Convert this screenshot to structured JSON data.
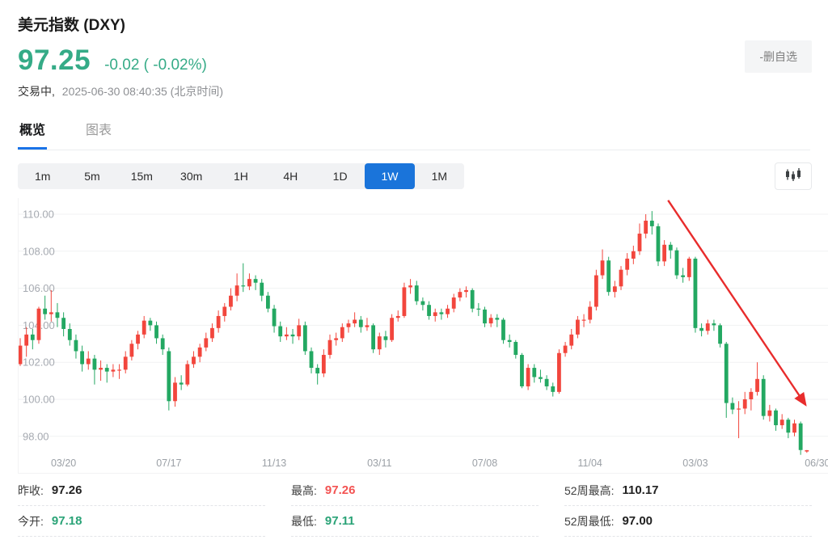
{
  "header": {
    "title": "美元指数 (DXY)",
    "price": "97.25",
    "change": "-0.02 ( -0.02%)",
    "status_label": "交易中,",
    "timestamp": "2025-06-30 08:40:35 (北京时间)",
    "watchlist_button": "-删自选"
  },
  "colors": {
    "text_green": "#35ab87",
    "text_red": "#f35352",
    "accent_blue": "#1a74da",
    "candle_up_red": "#f2463d",
    "candle_down_green": "#23a862"
  },
  "tabs": [
    {
      "label": "概览",
      "active": true
    },
    {
      "label": "图表",
      "active": false
    }
  ],
  "timeframes": {
    "options": [
      "1m",
      "5m",
      "15m",
      "30m",
      "1H",
      "4H",
      "1D",
      "1W",
      "1M"
    ],
    "selected": "1W"
  },
  "chart_data": {
    "type": "candlestick",
    "interval": "1W",
    "up_color": "#f2463d",
    "down_color": "#23a862",
    "grid": true,
    "ylim": [
      96.9,
      110.9
    ],
    "y_ticks": [
      110,
      108,
      106,
      104,
      102,
      100,
      98
    ],
    "y_tick_labels": [
      "110.00",
      "108.00",
      "106.00",
      "104.00",
      "102.00",
      "100.00",
      "98.00"
    ],
    "x_labels": [
      {
        "label": "03/20",
        "index": 7
      },
      {
        "label": "07/17",
        "index": 24
      },
      {
        "label": "11/13",
        "index": 41
      },
      {
        "label": "03/11",
        "index": 58
      },
      {
        "label": "07/08",
        "index": 75
      },
      {
        "label": "11/04",
        "index": 92
      },
      {
        "label": "03/03",
        "index": 109
      },
      {
        "label": "06/30",
        "index": 128.7
      }
    ],
    "candles_format": [
      "open",
      "high",
      "low",
      "close"
    ],
    "candles": [
      [
        101.9,
        103.3,
        101.8,
        102.9
      ],
      [
        102.9,
        103.9,
        102.3,
        103.5
      ],
      [
        103.5,
        103.8,
        102.7,
        103.2
      ],
      [
        103.2,
        105.0,
        103.0,
        104.9
      ],
      [
        104.9,
        105.6,
        104.3,
        104.6
      ],
      [
        104.6,
        105.9,
        104.2,
        104.7
      ],
      [
        104.7,
        105.2,
        103.9,
        104.4
      ],
      [
        104.4,
        104.7,
        103.4,
        103.8
      ],
      [
        103.8,
        104.1,
        102.9,
        103.2
      ],
      [
        103.2,
        103.5,
        102.2,
        102.6
      ],
      [
        102.6,
        102.9,
        101.5,
        101.9
      ],
      [
        101.9,
        102.6,
        101.6,
        102.2
      ],
      [
        102.2,
        102.4,
        100.8,
        101.6
      ],
      [
        101.6,
        102.1,
        101.0,
        101.7
      ],
      [
        101.7,
        101.9,
        100.9,
        101.5
      ],
      [
        101.5,
        101.9,
        101.2,
        101.6
      ],
      [
        101.6,
        101.9,
        101.1,
        101.6
      ],
      [
        101.6,
        102.6,
        101.4,
        102.3
      ],
      [
        102.3,
        103.2,
        102.1,
        103.0
      ],
      [
        103.0,
        103.7,
        102.7,
        103.5
      ],
      [
        103.5,
        104.5,
        103.3,
        104.25
      ],
      [
        104.25,
        104.4,
        103.7,
        104.0
      ],
      [
        104.0,
        104.2,
        103.0,
        103.3
      ],
      [
        103.3,
        103.5,
        102.4,
        102.7
      ],
      [
        102.6,
        102.8,
        99.4,
        99.9
      ],
      [
        99.9,
        101.2,
        99.6,
        100.9
      ],
      [
        100.9,
        101.3,
        100.5,
        100.8
      ],
      [
        100.8,
        102.1,
        100.7,
        101.9
      ],
      [
        101.9,
        102.6,
        101.7,
        102.3
      ],
      [
        102.3,
        103.0,
        102.0,
        102.8
      ],
      [
        102.8,
        103.6,
        102.6,
        103.3
      ],
      [
        103.3,
        104.1,
        103.1,
        103.85
      ],
      [
        103.85,
        104.8,
        103.6,
        104.5
      ],
      [
        104.5,
        105.2,
        104.2,
        105.0
      ],
      [
        105.0,
        106.0,
        104.8,
        105.6
      ],
      [
        105.6,
        106.8,
        105.3,
        106.15
      ],
      [
        106.15,
        107.35,
        105.8,
        106.1
      ],
      [
        106.1,
        106.8,
        105.9,
        106.5
      ],
      [
        106.5,
        106.7,
        105.9,
        106.3
      ],
      [
        106.3,
        106.5,
        105.3,
        105.6
      ],
      [
        105.6,
        105.8,
        104.7,
        104.9
      ],
      [
        104.9,
        105.1,
        103.6,
        103.95
      ],
      [
        103.95,
        104.2,
        103.1,
        103.4
      ],
      [
        103.4,
        103.9,
        103.2,
        103.5
      ],
      [
        103.5,
        103.8,
        103.0,
        103.4
      ],
      [
        103.4,
        104.35,
        103.2,
        104.0
      ],
      [
        104.0,
        104.2,
        102.4,
        102.6
      ],
      [
        102.6,
        102.8,
        101.4,
        101.7
      ],
      [
        101.7,
        101.9,
        100.8,
        101.4
      ],
      [
        101.4,
        102.7,
        101.2,
        102.4
      ],
      [
        102.4,
        103.5,
        102.2,
        103.2
      ],
      [
        103.2,
        103.6,
        102.9,
        103.3
      ],
      [
        103.3,
        104.1,
        103.1,
        103.9
      ],
      [
        103.9,
        104.3,
        103.6,
        104.1
      ],
      [
        104.1,
        104.7,
        103.9,
        104.3
      ],
      [
        104.3,
        104.5,
        103.6,
        103.9
      ],
      [
        103.9,
        104.4,
        103.7,
        104.0
      ],
      [
        104.0,
        104.1,
        102.5,
        102.7
      ],
      [
        102.7,
        103.6,
        102.4,
        103.4
      ],
      [
        103.4,
        103.7,
        102.8,
        103.2
      ],
      [
        103.2,
        104.6,
        103.1,
        104.4
      ],
      [
        104.4,
        104.8,
        104.2,
        104.5
      ],
      [
        104.5,
        106.3,
        104.4,
        106.05
      ],
      [
        106.05,
        106.5,
        105.7,
        106.15
      ],
      [
        106.15,
        106.4,
        105.1,
        105.3
      ],
      [
        105.3,
        105.5,
        104.8,
        105.1
      ],
      [
        105.1,
        105.3,
        104.3,
        104.5
      ],
      [
        104.5,
        104.9,
        104.2,
        104.7
      ],
      [
        104.7,
        104.9,
        104.3,
        104.6
      ],
      [
        104.6,
        105.1,
        104.4,
        104.9
      ],
      [
        104.9,
        105.7,
        104.7,
        105.5
      ],
      [
        105.5,
        106.0,
        105.3,
        105.8
      ],
      [
        105.8,
        106.1,
        105.5,
        105.9
      ],
      [
        105.9,
        106.0,
        104.7,
        104.9
      ],
      [
        104.9,
        105.2,
        104.5,
        104.85
      ],
      [
        104.85,
        105.0,
        103.9,
        104.1
      ],
      [
        104.1,
        104.6,
        103.9,
        104.4
      ],
      [
        104.4,
        104.6,
        103.9,
        104.3
      ],
      [
        104.3,
        104.4,
        103.0,
        103.2
      ],
      [
        103.2,
        103.5,
        102.8,
        103.1
      ],
      [
        103.1,
        103.2,
        102.2,
        102.4
      ],
      [
        102.4,
        102.5,
        100.6,
        100.7
      ],
      [
        100.7,
        101.9,
        100.5,
        101.7
      ],
      [
        101.7,
        101.9,
        100.9,
        101.2
      ],
      [
        101.2,
        101.6,
        100.9,
        101.1
      ],
      [
        101.1,
        101.3,
        100.5,
        100.7
      ],
      [
        100.7,
        100.9,
        100.15,
        100.4
      ],
      [
        100.4,
        102.7,
        100.3,
        102.5
      ],
      [
        102.5,
        103.1,
        102.3,
        102.9
      ],
      [
        102.9,
        103.8,
        102.7,
        103.5
      ],
      [
        103.5,
        104.5,
        103.3,
        104.3
      ],
      [
        104.3,
        104.6,
        103.9,
        104.3
      ],
      [
        104.3,
        105.3,
        104.1,
        105.0
      ],
      [
        105.0,
        107.0,
        104.8,
        106.7
      ],
      [
        106.7,
        108.1,
        106.5,
        107.5
      ],
      [
        107.5,
        107.7,
        105.6,
        105.8
      ],
      [
        105.8,
        106.4,
        105.5,
        106.1
      ],
      [
        106.1,
        107.2,
        105.9,
        107.0
      ],
      [
        107.0,
        107.9,
        106.7,
        107.6
      ],
      [
        107.6,
        108.3,
        107.3,
        108.0
      ],
      [
        108.0,
        109.5,
        107.8,
        108.95
      ],
      [
        108.95,
        110.0,
        108.7,
        109.65
      ],
      [
        109.65,
        110.17,
        108.9,
        109.35
      ],
      [
        109.35,
        109.5,
        107.2,
        107.45
      ],
      [
        107.45,
        108.6,
        107.2,
        108.35
      ],
      [
        108.35,
        108.5,
        107.6,
        108.05
      ],
      [
        108.05,
        108.2,
        106.5,
        106.7
      ],
      [
        106.7,
        107.1,
        106.3,
        106.6
      ],
      [
        106.6,
        107.7,
        106.4,
        107.6
      ],
      [
        107.6,
        107.7,
        103.6,
        103.85
      ],
      [
        103.85,
        104.1,
        103.4,
        103.7
      ],
      [
        103.7,
        104.3,
        103.5,
        104.1
      ],
      [
        104.1,
        104.3,
        103.7,
        104.0
      ],
      [
        104.0,
        104.1,
        102.8,
        103.0
      ],
      [
        103.0,
        103.1,
        99.0,
        99.8
      ],
      [
        99.8,
        100.1,
        99.2,
        99.45
      ],
      [
        99.45,
        99.9,
        97.9,
        99.5
      ],
      [
        99.5,
        100.4,
        99.2,
        100.0
      ],
      [
        100.0,
        100.6,
        99.4,
        100.4
      ],
      [
        100.4,
        102.0,
        100.2,
        101.1
      ],
      [
        101.1,
        101.3,
        98.9,
        99.1
      ],
      [
        99.1,
        99.7,
        98.8,
        99.4
      ],
      [
        99.4,
        99.5,
        98.3,
        98.6
      ],
      [
        98.6,
        99.2,
        98.4,
        98.9
      ],
      [
        98.9,
        99.0,
        97.9,
        98.2
      ],
      [
        98.2,
        98.9,
        98.0,
        98.7
      ],
      [
        98.7,
        98.8,
        97.0,
        97.26
      ],
      [
        97.18,
        97.26,
        97.11,
        97.25
      ]
    ],
    "annotation": {
      "type": "arrow",
      "color": "#e82c2c",
      "from_index": 104.6,
      "from_value": 110.75,
      "to_index": 126.8,
      "to_value": 99.7
    }
  },
  "stats": {
    "rows": [
      [
        {
          "label": "昨收:",
          "value": "97.26"
        },
        {
          "label": "最高:",
          "value": "97.26"
        },
        {
          "label": "52周最高:",
          "value": "110.17"
        }
      ],
      [
        {
          "label": "今开:",
          "value": "97.18"
        },
        {
          "label": "最低:",
          "value": "97.11"
        },
        {
          "label": "52周最低:",
          "value": "97.00"
        }
      ]
    ]
  }
}
